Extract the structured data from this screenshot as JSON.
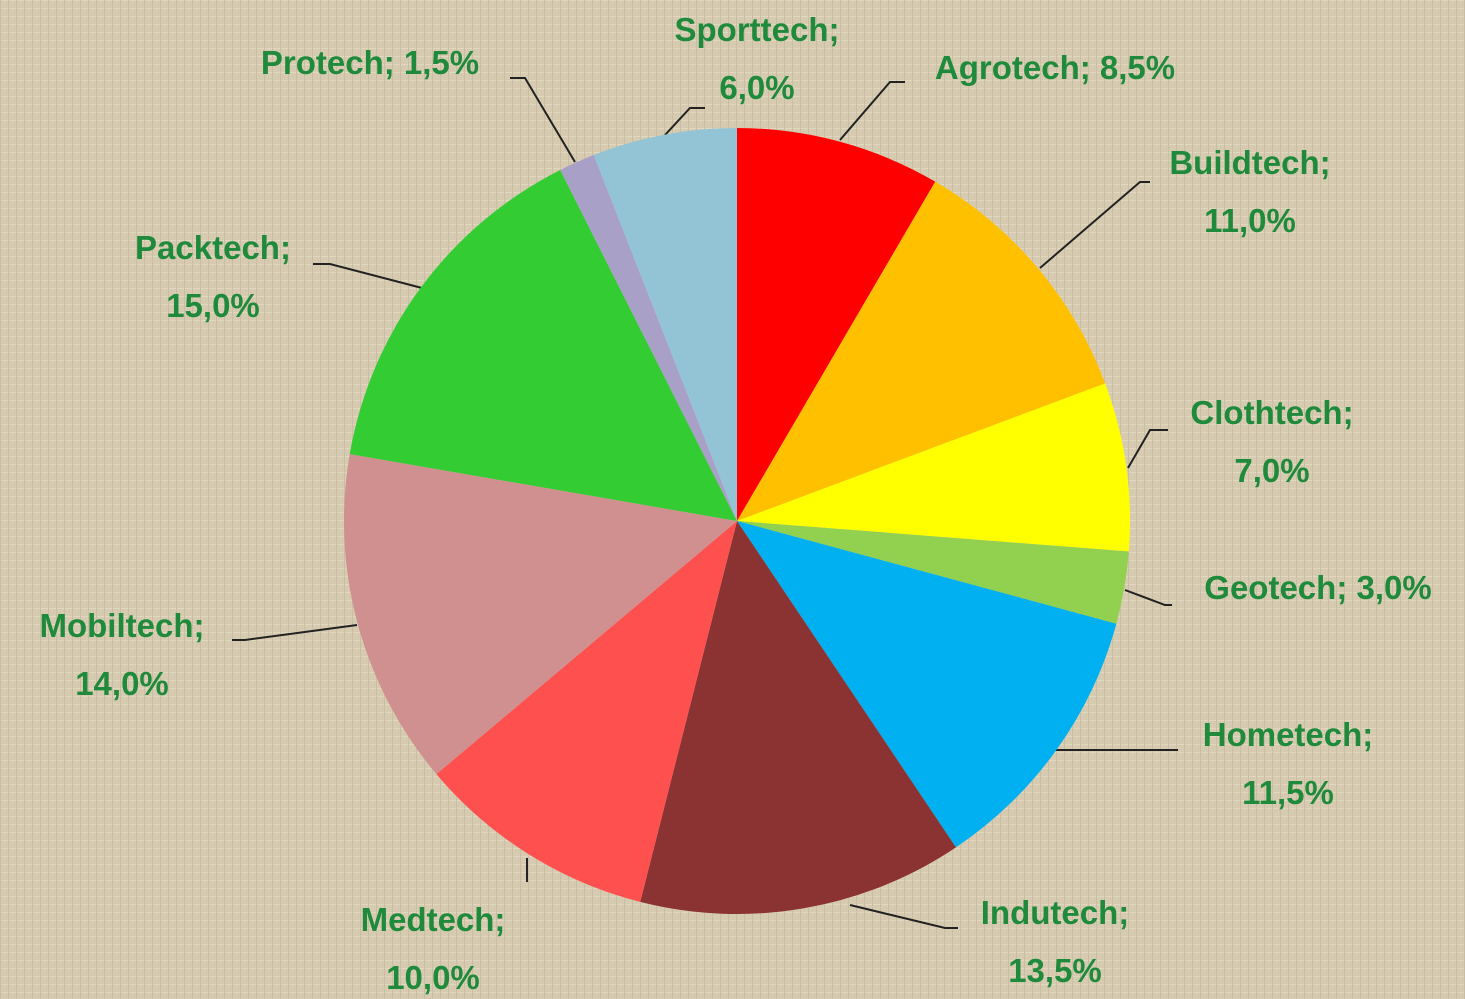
{
  "chart_data": {
    "type": "pie",
    "labels": [
      [
        "Agrotech; 8,5%"
      ],
      [
        "Buildtech;",
        "11,0%"
      ],
      [
        "Clothtech;",
        "7,0%"
      ],
      [
        "Geotech; 3,0%"
      ],
      [
        "Hometech;",
        "11,5%"
      ],
      [
        "Indutech;",
        "13,5%"
      ],
      [
        "Medtech;",
        "10,0%"
      ],
      [
        "Mobiltech;",
        "14,0%"
      ],
      [
        "Packtech;",
        "15,0%"
      ],
      [
        "Protech; 1,5%"
      ],
      [
        "Sporttech;",
        "6,0%"
      ]
    ],
    "values": [
      8.5,
      11,
      7,
      3,
      11.5,
      13.5,
      10,
      14,
      15,
      1.5,
      6
    ],
    "colors": [
      "#ff0000",
      "#ffc000",
      "#ffff00",
      "#92d050",
      "#00b0f0",
      "#8b3333",
      "#ff5050",
      "#d09090",
      "#33cc33",
      "#a9a0c8",
      "#93c4d6"
    ]
  }
}
